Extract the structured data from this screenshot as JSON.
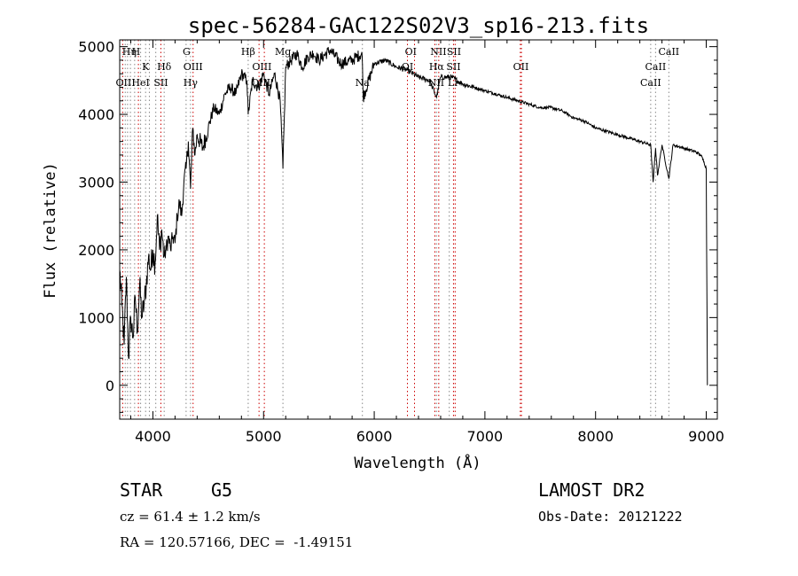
{
  "chart_data": {
    "type": "line",
    "title": "spec-56284-GAC122S02V3_sp16-213.fits",
    "xlabel": "Wavelength (Å)",
    "ylabel": "Flux (relative)",
    "xlim": [
      3700,
      9100
    ],
    "ylim": [
      -500,
      5100
    ],
    "xticks": [
      "4000",
      "5000",
      "6000",
      "7000",
      "8000",
      "9000"
    ],
    "yticks": [
      "0",
      "1000",
      "2000",
      "3000",
      "4000",
      "5000"
    ],
    "series": [
      {
        "x": [
          3700,
          3720,
          3740,
          3760,
          3780,
          3800,
          3820,
          3840,
          3860,
          3880,
          3900,
          3920,
          3940,
          3960,
          3980,
          4000,
          4020,
          4040,
          4060,
          4080,
          4100,
          4120,
          4140,
          4160,
          4180,
          4200,
          4220,
          4240,
          4260,
          4280,
          4300,
          4320,
          4340,
          4360,
          4380,
          4400,
          4450,
          4500,
          4550,
          4600,
          4650,
          4700,
          4750,
          4800,
          4850,
          4861,
          4900,
          4950,
          5000,
          5050,
          5100,
          5150,
          5175,
          5200,
          5250,
          5300,
          5350,
          5400,
          5450,
          5500,
          5600,
          5700,
          5800,
          5890,
          5900,
          6000,
          6100,
          6200,
          6300,
          6400,
          6500,
          6563,
          6600,
          6700,
          6800,
          6900,
          7000,
          7100,
          7200,
          7300,
          7400,
          7500,
          7600,
          7700,
          7800,
          7900,
          8000,
          8100,
          8200,
          8300,
          8400,
          8498,
          8520,
          8542,
          8560,
          8600,
          8662,
          8700,
          8800,
          8900,
          8950,
          8980,
          9000,
          9010
        ],
        "y": [
          1700,
          1200,
          600,
          1600,
          400,
          1000,
          700,
          1300,
          800,
          1500,
          1000,
          1200,
          1500,
          1900,
          1700,
          2000,
          1800,
          2500,
          2000,
          2300,
          1900,
          2000,
          2200,
          2000,
          2200,
          2100,
          2500,
          2700,
          2500,
          3000,
          3200,
          3600,
          2900,
          3800,
          3400,
          3700,
          3500,
          3800,
          4100,
          4000,
          4300,
          4400,
          4300,
          4600,
          4500,
          4000,
          4500,
          4400,
          4600,
          4300,
          4600,
          4200,
          3200,
          4700,
          4800,
          4900,
          4700,
          4850,
          4900,
          4800,
          4950,
          4750,
          4800,
          4900,
          4250,
          4750,
          4800,
          4700,
          4650,
          4550,
          4500,
          4250,
          4550,
          4550,
          4450,
          4400,
          4350,
          4300,
          4250,
          4200,
          4150,
          4100,
          4100,
          4050,
          3950,
          3900,
          3800,
          3750,
          3700,
          3650,
          3600,
          3550,
          3000,
          3500,
          3100,
          3550,
          3050,
          3550,
          3500,
          3450,
          3400,
          3300,
          3200,
          0
        ]
      }
    ],
    "lines": [
      {
        "w": 3727,
        "col": "#cc0000"
      },
      {
        "w": 3750,
        "col": "#888888"
      },
      {
        "w": 3771,
        "col": "#888888"
      },
      {
        "w": 3797,
        "col": "#888888"
      },
      {
        "w": 3835,
        "col": "#888888"
      },
      {
        "w": 3869,
        "col": "#cc0000"
      },
      {
        "w": 3889,
        "col": "#888888"
      },
      {
        "w": 3934,
        "col": "#888888"
      },
      {
        "w": 3968,
        "col": "#888888"
      },
      {
        "w": 4026,
        "col": "#888888"
      },
      {
        "w": 4072,
        "col": "#cc0000"
      },
      {
        "w": 4102,
        "col": "#888888"
      },
      {
        "w": 4300,
        "col": "#888888"
      },
      {
        "w": 4340,
        "col": "#888888"
      },
      {
        "w": 4363,
        "col": "#cc0000"
      },
      {
        "w": 4861,
        "col": "#888888"
      },
      {
        "w": 4959,
        "col": "#cc0000"
      },
      {
        "w": 5007,
        "col": "#cc0000"
      },
      {
        "w": 5175,
        "col": "#888888"
      },
      {
        "w": 5893,
        "col": "#888888"
      },
      {
        "w": 6300,
        "col": "#cc0000"
      },
      {
        "w": 6364,
        "col": "#cc0000"
      },
      {
        "w": 6548,
        "col": "#cc0000"
      },
      {
        "w": 6563,
        "col": "#888888"
      },
      {
        "w": 6583,
        "col": "#cc0000"
      },
      {
        "w": 6678,
        "col": "#888888"
      },
      {
        "w": 6716,
        "col": "#cc0000"
      },
      {
        "w": 6731,
        "col": "#cc0000"
      },
      {
        "w": 7320,
        "col": "#cc0000"
      },
      {
        "w": 7330,
        "col": "#cc0000"
      },
      {
        "w": 8498,
        "col": "#888888"
      },
      {
        "w": 8542,
        "col": "#888888"
      },
      {
        "w": 8662,
        "col": "#888888"
      }
    ],
    "line_labels": [
      {
        "text": "Hη",
        "w": 3787,
        "row": 1
      },
      {
        "text": "H",
        "w": 3848,
        "row": 1
      },
      {
        "text": "K",
        "w": 3934,
        "row": 2
      },
      {
        "text": "Hδ",
        "w": 4102,
        "row": 2
      },
      {
        "text": "OII",
        "w": 3735,
        "row": 3
      },
      {
        "text": "HeI",
        "w": 3889,
        "row": 3
      },
      {
        "text": "SII",
        "w": 4072,
        "row": 3
      },
      {
        "text": "G",
        "w": 4304,
        "row": 1
      },
      {
        "text": "OIII",
        "w": 4363,
        "row": 2
      },
      {
        "text": "Hγ",
        "w": 4340,
        "row": 3
      },
      {
        "text": "Hβ",
        "w": 4861,
        "row": 1
      },
      {
        "text": "OIII",
        "w": 4985,
        "row": 2
      },
      {
        "text": "OIII",
        "w": 4975,
        "row": 3
      },
      {
        "text": "Mg",
        "w": 5175,
        "row": 1
      },
      {
        "text": "Na",
        "w": 5893,
        "row": 3
      },
      {
        "text": "OI",
        "w": 6330,
        "row": 1
      },
      {
        "text": "OI",
        "w": 6300,
        "row": 2
      },
      {
        "text": "NII",
        "w": 6580,
        "row": 1
      },
      {
        "text": "SII",
        "w": 6720,
        "row": 1
      },
      {
        "text": "Hα",
        "w": 6563,
        "row": 2
      },
      {
        "text": "SII",
        "w": 6716,
        "row": 2
      },
      {
        "text": "NII",
        "w": 6560,
        "row": 3
      },
      {
        "text": "Li",
        "w": 6708,
        "row": 3
      },
      {
        "text": "OII",
        "w": 7325,
        "row": 2
      },
      {
        "text": "CaII",
        "w": 8662,
        "row": 1
      },
      {
        "text": "CaII",
        "w": 8542,
        "row": 2
      },
      {
        "text": "CaII",
        "w": 8498,
        "row": 3
      }
    ]
  },
  "footer": {
    "class_label": "STAR",
    "subclass": "G5",
    "survey": "LAMOST DR2",
    "cz": "cz = 61.4 ± 1.2 km/s",
    "obs_date": "Obs-Date: 20121222",
    "coords": "RA = 120.57166, DEC =  -1.49151"
  }
}
